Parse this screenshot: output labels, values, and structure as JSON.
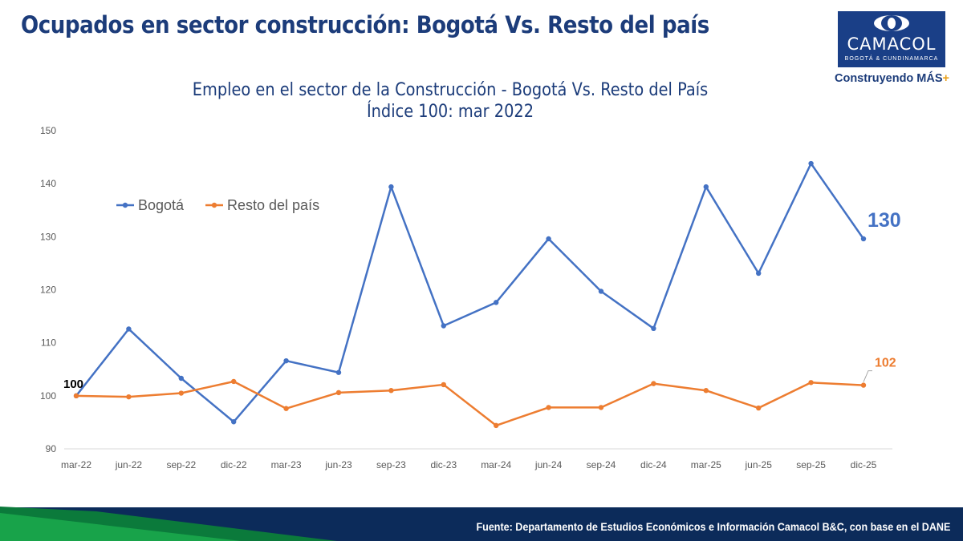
{
  "header": {
    "title": "Ocupados en sector construcción: Bogotá Vs. Resto del país"
  },
  "logo": {
    "name": "CAMACOL",
    "subtitle": "BOGOTÁ & CUNDINAMARCA",
    "slogan": "Construyendo MÁS",
    "slogan_mark": "+"
  },
  "footer": {
    "source": "Fuente: Departamento de Estudios Económicos e Información Camacol B&C, con base en el DANE"
  },
  "colors": {
    "bogota": "#4472c4",
    "resto": "#ed7d31",
    "title": "#1c3c7a",
    "axis_text": "#595959",
    "grid": "#d9d9d9"
  },
  "chart_data": {
    "type": "line",
    "title": "Empleo en el sector de la Construcción  - Bogotá Vs. Resto del País",
    "subtitle": "Índice 100: mar 2022",
    "xlabel": "",
    "ylabel": "",
    "ylim": [
      90,
      150
    ],
    "yticks": [
      "150",
      "140",
      "130",
      "120",
      "110",
      "100",
      "90"
    ],
    "grid": false,
    "legend_position": "top-left",
    "categories": [
      "mar-22",
      "jun-22",
      "sep-22",
      "dic-22",
      "mar-23",
      "jun-23",
      "sep-23",
      "dic-23",
      "mar-24",
      "jun-24",
      "sep-24",
      "dic-24",
      "mar-25",
      "jun-25",
      "sep-25",
      "dic-25"
    ],
    "series": [
      {
        "name": "Bogotá",
        "values": [
          100,
          112.6,
          103.3,
          95.1,
          106.6,
          104.4,
          139.4,
          113.2,
          117.6,
          129.6,
          119.7,
          112.7,
          139.4,
          123.1,
          143.8,
          129.6
        ],
        "color": "#4472c4"
      },
      {
        "name": "Resto del país",
        "values": [
          100,
          99.8,
          100.5,
          102.7,
          97.6,
          100.6,
          101.0,
          102.1,
          94.4,
          97.8,
          97.8,
          102.3,
          101.0,
          97.7,
          102.5,
          102.0
        ],
        "color": "#ed7d31"
      }
    ],
    "annotations": {
      "start": "100",
      "bogota_end": "130",
      "resto_end": "102"
    }
  }
}
